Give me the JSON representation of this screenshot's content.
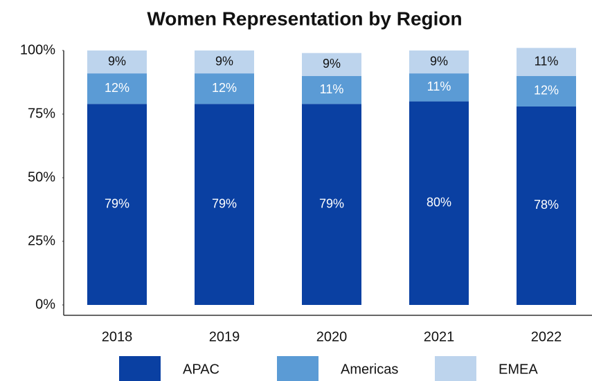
{
  "chart_data": {
    "type": "stacked_bar",
    "title": "Women Representation by Region",
    "categories": [
      "2018",
      "2019",
      "2020",
      "2021",
      "2022"
    ],
    "series": [
      {
        "name": "APAC",
        "color": "#0a40a2",
        "label_color": "#ffffff",
        "values": [
          79,
          79,
          79,
          80,
          78
        ],
        "value_labels": [
          "79%",
          "79%",
          "79%",
          "80%",
          "78%"
        ]
      },
      {
        "name": "Americas",
        "color": "#5b9bd5",
        "label_color": "#ffffff",
        "values": [
          12,
          12,
          11,
          11,
          12
        ],
        "value_labels": [
          "12%",
          "12%",
          "11%",
          "11%",
          "12%"
        ]
      },
      {
        "name": "EMEA",
        "color": "#bdd4ed",
        "label_color": "#111111",
        "values": [
          9,
          9,
          9,
          9,
          11
        ],
        "value_labels": [
          "9%",
          "9%",
          "9%",
          "9%",
          "11%"
        ]
      }
    ],
    "ylim": [
      0,
      100
    ],
    "yticks": [
      {
        "value": 0,
        "label": "0%"
      },
      {
        "value": 25,
        "label": "25%"
      },
      {
        "value": 50,
        "label": "50%"
      },
      {
        "value": 75,
        "label": "75%"
      },
      {
        "value": 100,
        "label": "100%"
      }
    ],
    "legend": "bottom"
  }
}
